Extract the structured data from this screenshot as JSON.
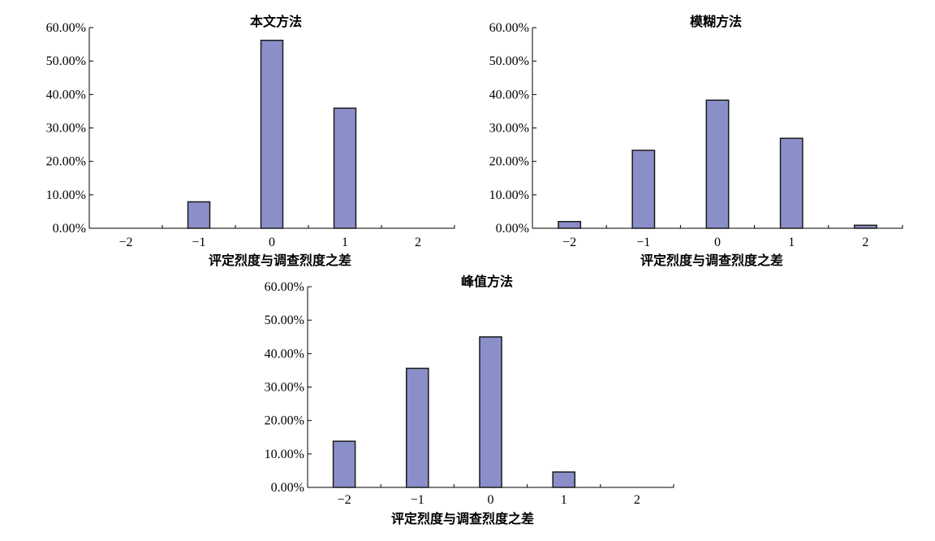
{
  "colors": {
    "bar_fill": "#8b8fc9",
    "bar_stroke": "#1a1a1a",
    "axis": "#000000"
  },
  "chart_data": [
    {
      "type": "bar",
      "title": "本文方法",
      "xlabel": "评定烈度与调查烈度之差",
      "ylabel": "",
      "categories": [
        "−2",
        "−1",
        "0",
        "1",
        "2"
      ],
      "values": [
        0,
        7.9,
        56.2,
        35.9,
        0
      ],
      "ylim": [
        0,
        60
      ],
      "y_ticks": [
        "0.00%",
        "10.00%",
        "20.00%",
        "30.00%",
        "40.00%",
        "50.00%",
        "60.00%"
      ],
      "grid": false
    },
    {
      "type": "bar",
      "title": "模糊方法",
      "xlabel": "评定烈度与调查烈度之差",
      "ylabel": "",
      "categories": [
        "−2",
        "−1",
        "0",
        "1",
        "2"
      ],
      "values": [
        2.0,
        23.3,
        38.3,
        26.9,
        0.9
      ],
      "ylim": [
        0,
        60
      ],
      "y_ticks": [
        "0.00%",
        "10.00%",
        "20.00%",
        "30.00%",
        "40.00%",
        "50.00%",
        "60.00%"
      ],
      "grid": false
    },
    {
      "type": "bar",
      "title": "峰值方法",
      "xlabel": "评定烈度与调查烈度之差",
      "ylabel": "",
      "categories": [
        "−2",
        "−1",
        "0",
        "1",
        "2"
      ],
      "values": [
        13.8,
        35.6,
        45.0,
        4.6,
        0
      ],
      "ylim": [
        0,
        60
      ],
      "y_ticks": [
        "0.00%",
        "10.00%",
        "20.00%",
        "30.00%",
        "40.00%",
        "50.00%",
        "60.00%"
      ],
      "grid": false
    }
  ]
}
